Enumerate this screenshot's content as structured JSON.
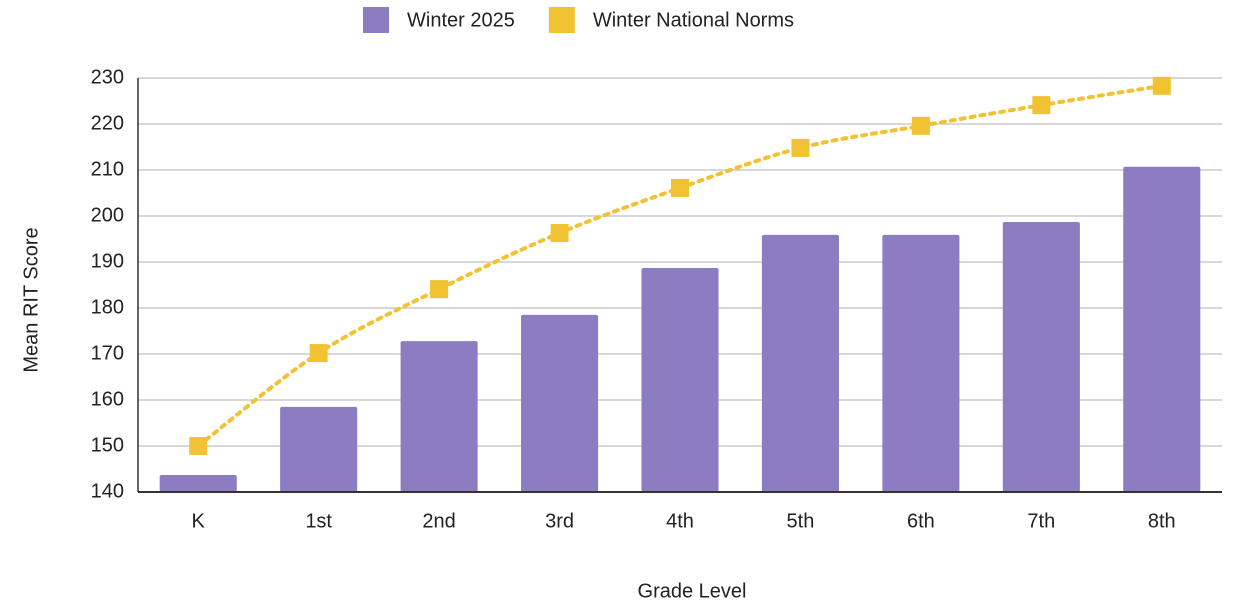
{
  "chart_data": {
    "type": "bar",
    "x_label": "Grade Level",
    "y_label": "Mean RIT Score",
    "categories": [
      "K",
      "1st",
      "2nd",
      "3rd",
      "4th",
      "5th",
      "6th",
      "7th",
      "8th"
    ],
    "series": [
      {
        "name": "Winter 2025",
        "type": "bar",
        "color": "#8e7cc3",
        "values": [
          143.7,
          158.5,
          172.8,
          178.5,
          188.7,
          195.9,
          195.9,
          198.7,
          210.7
        ]
      },
      {
        "name": "Winter National Norms",
        "type": "line",
        "line_style": "dotted",
        "marker": "square",
        "color": "#f1c232",
        "values": [
          150.0,
          170.2,
          184.1,
          196.3,
          206.1,
          214.8,
          219.6,
          224.1,
          228.3
        ]
      }
    ],
    "ylim": [
      140,
      230
    ],
    "yticks": [
      140,
      150,
      160,
      170,
      180,
      190,
      200,
      210,
      220,
      230
    ],
    "grid": true,
    "legend": "top"
  }
}
